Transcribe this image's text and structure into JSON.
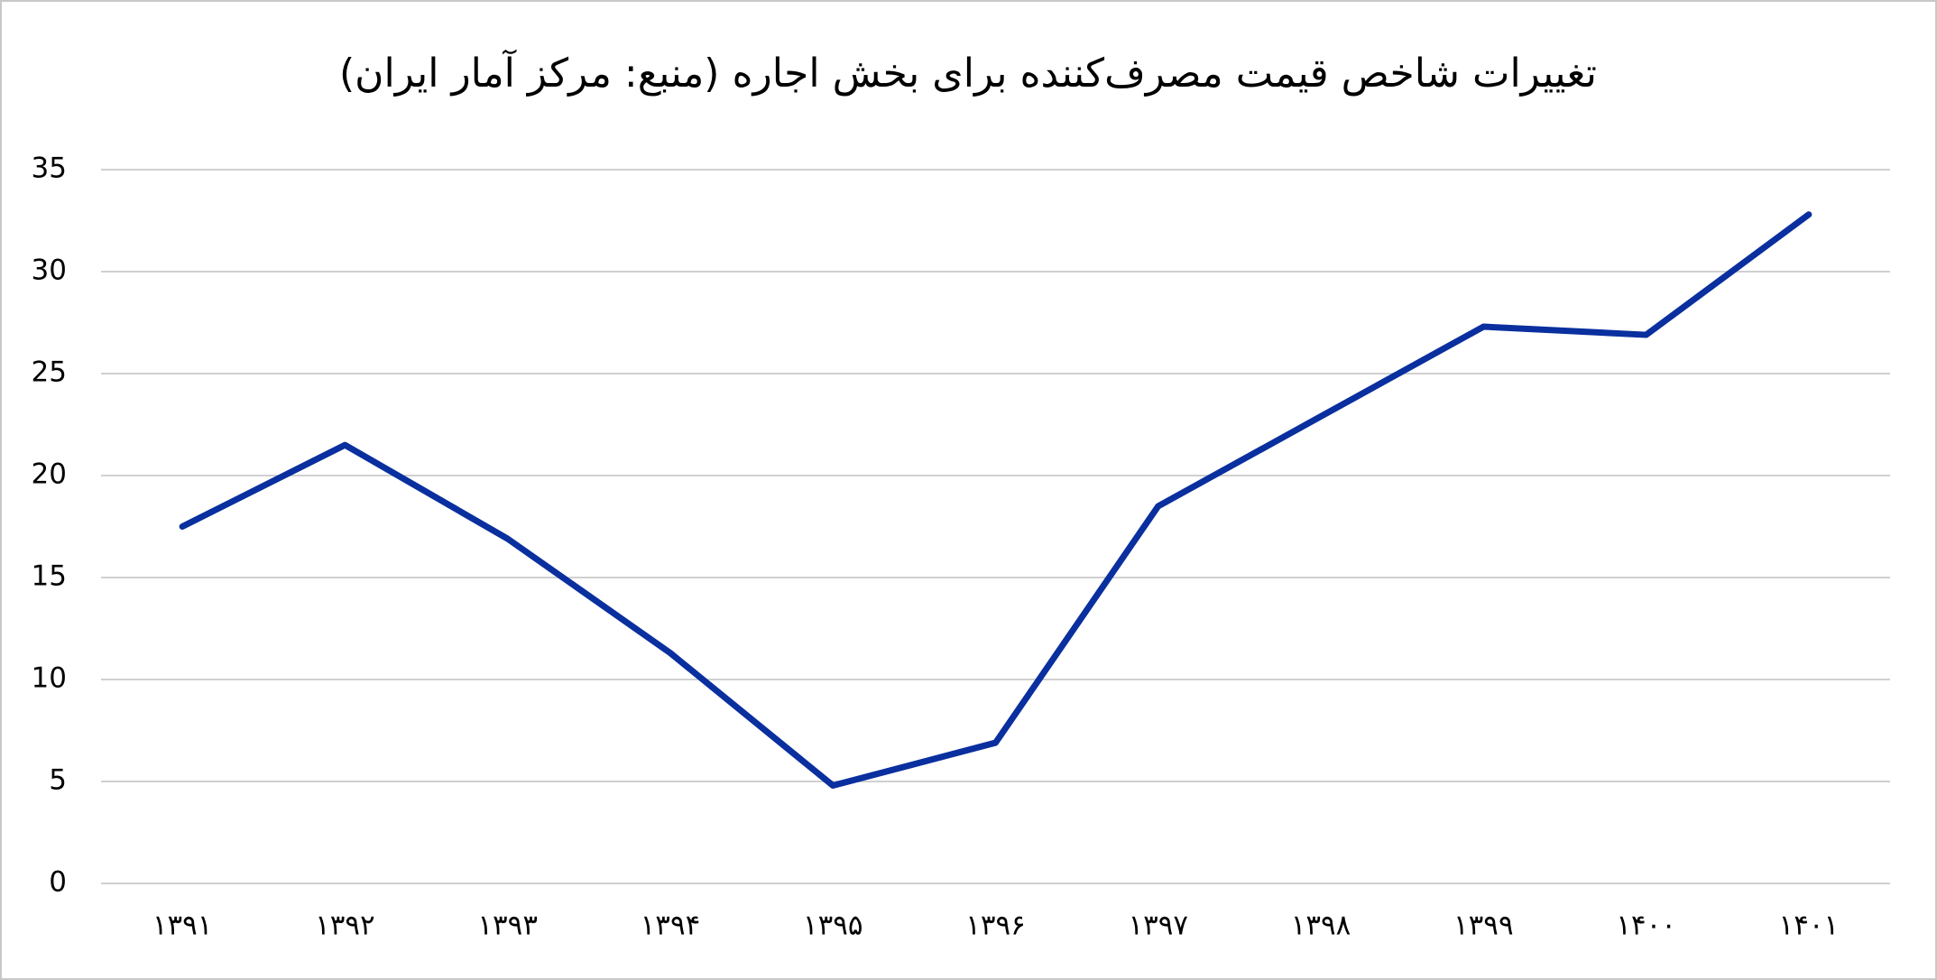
{
  "chart_data": {
    "type": "line",
    "title": "تغییرات شاخص قیمت مصرف‌کننده برای بخش اجاره (منبع: مرکز آمار ایران)",
    "categories": [
      "۱۳۹۱",
      "۱۳۹۲",
      "۱۳۹۳",
      "۱۳۹۴",
      "۱۳۹۵",
      "۱۳۹۶",
      "۱۳۹۷",
      "۱۳۹۸",
      "۱۳۹۹",
      "۱۴۰۰",
      "۱۴۰۱"
    ],
    "values": [
      17.5,
      21.5,
      16.9,
      11.3,
      4.8,
      6.9,
      18.5,
      22.9,
      27.3,
      26.9,
      32.8
    ],
    "color": "#0a2f9e",
    "ylim": [
      0,
      35
    ],
    "yticks": [
      0,
      5,
      10,
      15,
      20,
      25,
      30,
      35
    ],
    "grid": true
  }
}
